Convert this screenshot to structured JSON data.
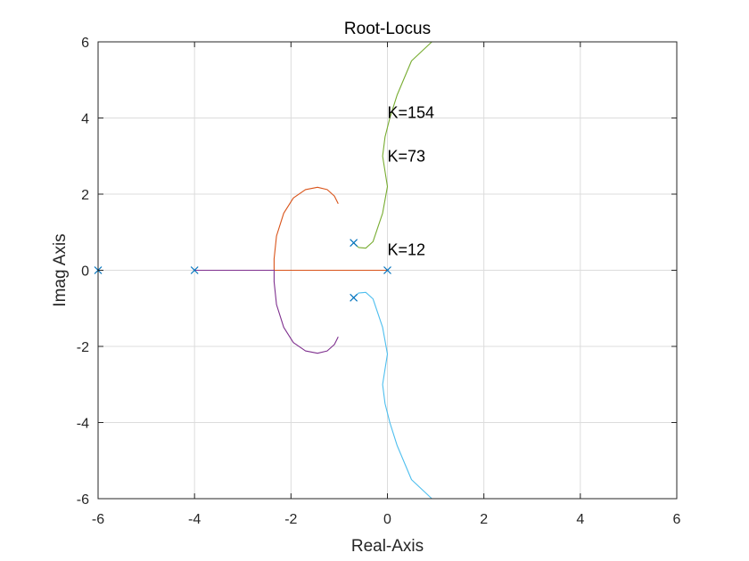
{
  "chart_data": {
    "type": "line",
    "title": "Root-Locus",
    "xlabel": "Real-Axis",
    "ylabel": "Imag Axis",
    "xlim": [
      -6,
      6
    ],
    "ylim": [
      -6,
      6
    ],
    "xticks": [
      "-6",
      "-4",
      "-2",
      "0",
      "2",
      "4",
      "6"
    ],
    "yticks": [
      "-6",
      "-4",
      "-2",
      "0",
      "2",
      "4",
      "6"
    ],
    "grid": true,
    "poles": [
      {
        "x": -6,
        "y": 0
      },
      {
        "x": -4,
        "y": 0
      },
      {
        "x": 0,
        "y": 0
      },
      {
        "x": -0.7,
        "y": 0.72
      },
      {
        "x": -0.7,
        "y": -0.72
      }
    ],
    "pole_color": "#0072BD",
    "series": [
      {
        "color": "#77AC30",
        "points": [
          [
            -0.7,
            0.72
          ],
          [
            -0.6,
            0.6
          ],
          [
            -0.45,
            0.58
          ],
          [
            -0.3,
            0.75
          ],
          [
            -0.1,
            1.5
          ],
          [
            0.0,
            2.2
          ],
          [
            -0.05,
            2.6
          ],
          [
            -0.1,
            3.0
          ],
          [
            -0.05,
            3.5
          ],
          [
            0.05,
            4.0
          ],
          [
            0.2,
            4.6
          ],
          [
            0.5,
            5.5
          ],
          [
            0.92,
            6.0
          ]
        ]
      },
      {
        "color": "#4DBEEE",
        "points": [
          [
            -0.7,
            -0.72
          ],
          [
            -0.6,
            -0.6
          ],
          [
            -0.45,
            -0.58
          ],
          [
            -0.3,
            -0.75
          ],
          [
            -0.1,
            -1.5
          ],
          [
            0.0,
            -2.2
          ],
          [
            -0.05,
            -2.6
          ],
          [
            -0.1,
            -3.0
          ],
          [
            -0.05,
            -3.5
          ],
          [
            0.05,
            -4.0
          ],
          [
            0.2,
            -4.6
          ],
          [
            0.5,
            -5.5
          ],
          [
            0.92,
            -6.0
          ]
        ]
      },
      {
        "color": "#D95319",
        "points": [
          [
            0,
            0
          ],
          [
            -2.35,
            0
          ],
          [
            -2.35,
            0.3
          ],
          [
            -2.3,
            0.9
          ],
          [
            -2.15,
            1.5
          ],
          [
            -1.95,
            1.9
          ],
          [
            -1.7,
            2.12
          ],
          [
            -1.45,
            2.18
          ],
          [
            -1.25,
            2.12
          ],
          [
            -1.1,
            1.95
          ],
          [
            -1.02,
            1.75
          ]
        ]
      },
      {
        "color": "#7E2F8E",
        "points": [
          [
            -4,
            0
          ],
          [
            -2.35,
            0
          ],
          [
            -2.35,
            -0.3
          ],
          [
            -2.3,
            -0.9
          ],
          [
            -2.15,
            -1.5
          ],
          [
            -1.95,
            -1.9
          ],
          [
            -1.7,
            -2.12
          ],
          [
            -1.45,
            -2.18
          ],
          [
            -1.25,
            -2.12
          ],
          [
            -1.1,
            -1.95
          ],
          [
            -1.02,
            -1.75
          ]
        ]
      }
    ],
    "annotations": [
      {
        "text": "K=154",
        "x": 0.0,
        "y": 4.0
      },
      {
        "text": "K=73",
        "x": 0.0,
        "y": 2.85
      },
      {
        "text": "K=12",
        "x": 0.0,
        "y": 0.4
      }
    ]
  }
}
